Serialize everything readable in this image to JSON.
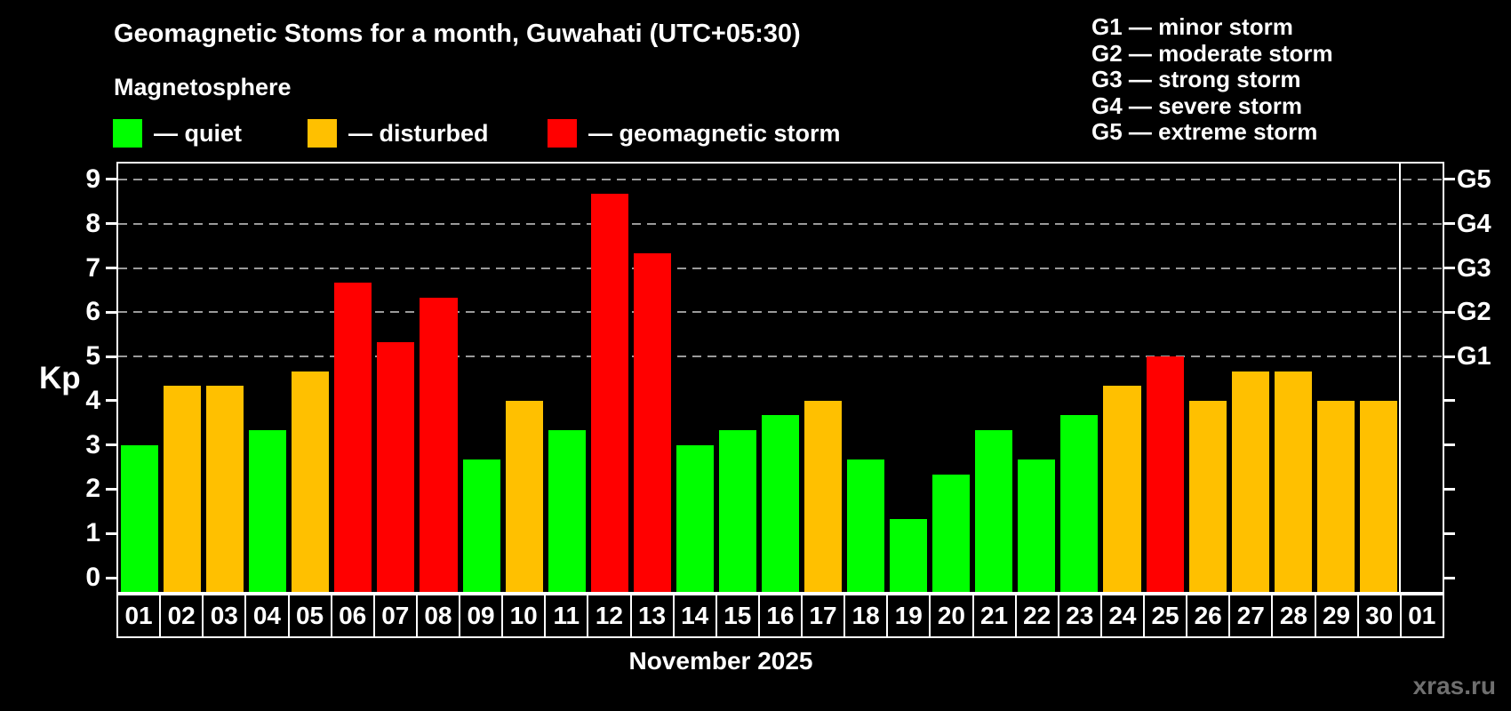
{
  "header": {
    "title": "Geomagnetic Stoms for a month, Guwahati (UTC+05:30)",
    "subtitle": "Magnetosphere",
    "series_legend": [
      {
        "name": "quiet",
        "label": "— quiet",
        "color": "#00ff00"
      },
      {
        "name": "disturbed",
        "label": "— disturbed",
        "color": "#ffc000"
      },
      {
        "name": "storm",
        "label": "— geomagnetic storm",
        "color": "#ff0000"
      }
    ],
    "storm_scale": [
      "G1 — minor storm",
      "G2 — moderate storm",
      "G3 — strong storm",
      "G4 — severe storm",
      "G5 — extreme storm"
    ]
  },
  "footer": {
    "xlabel": "November 2025",
    "watermark": "xras.ru"
  },
  "chart_data": {
    "type": "bar",
    "title": "Geomagnetic Stoms for a month, Guwahati (UTC+05:30)",
    "ylabel": "Kp",
    "xlabel": "November 2025",
    "ylim": [
      0,
      9
    ],
    "yticks": [
      0,
      1,
      2,
      3,
      4,
      5,
      6,
      7,
      8,
      9
    ],
    "grid": "dashed horizontal lines at Kp 5-9 only",
    "gridlines_at_kp": [
      5,
      6,
      7,
      8,
      9
    ],
    "legend_position": "top",
    "right_axis_labels": [
      {
        "kp": 5,
        "label": "G1"
      },
      {
        "kp": 6,
        "label": "G2"
      },
      {
        "kp": 7,
        "label": "G3"
      },
      {
        "kp": 8,
        "label": "G4"
      },
      {
        "kp": 9,
        "label": "G5"
      }
    ],
    "categories": [
      "01",
      "02",
      "03",
      "04",
      "05",
      "06",
      "07",
      "08",
      "09",
      "10",
      "11",
      "12",
      "13",
      "14",
      "15",
      "16",
      "17",
      "18",
      "19",
      "20",
      "21",
      "22",
      "23",
      "24",
      "25",
      "26",
      "27",
      "28",
      "29",
      "30",
      "01"
    ],
    "values": [
      3.0,
      4.33,
      4.33,
      3.33,
      4.67,
      6.67,
      5.33,
      6.33,
      2.67,
      4.0,
      3.33,
      8.67,
      7.33,
      3.0,
      3.33,
      3.67,
      4.0,
      2.67,
      1.33,
      2.33,
      3.33,
      2.67,
      3.67,
      4.33,
      5.0,
      4.0,
      4.67,
      4.67,
      4.0,
      4.0,
      null
    ],
    "status": [
      "quiet",
      "disturbed",
      "disturbed",
      "quiet",
      "disturbed",
      "storm",
      "storm",
      "storm",
      "quiet",
      "disturbed",
      "quiet",
      "storm",
      "storm",
      "quiet",
      "quiet",
      "quiet",
      "disturbed",
      "quiet",
      "quiet",
      "quiet",
      "quiet",
      "quiet",
      "quiet",
      "disturbed",
      "storm",
      "disturbed",
      "disturbed",
      "disturbed",
      "disturbed",
      "disturbed",
      null
    ],
    "status_colors": {
      "quiet": "#00ff00",
      "disturbed": "#ffc000",
      "storm": "#ff0000"
    }
  }
}
